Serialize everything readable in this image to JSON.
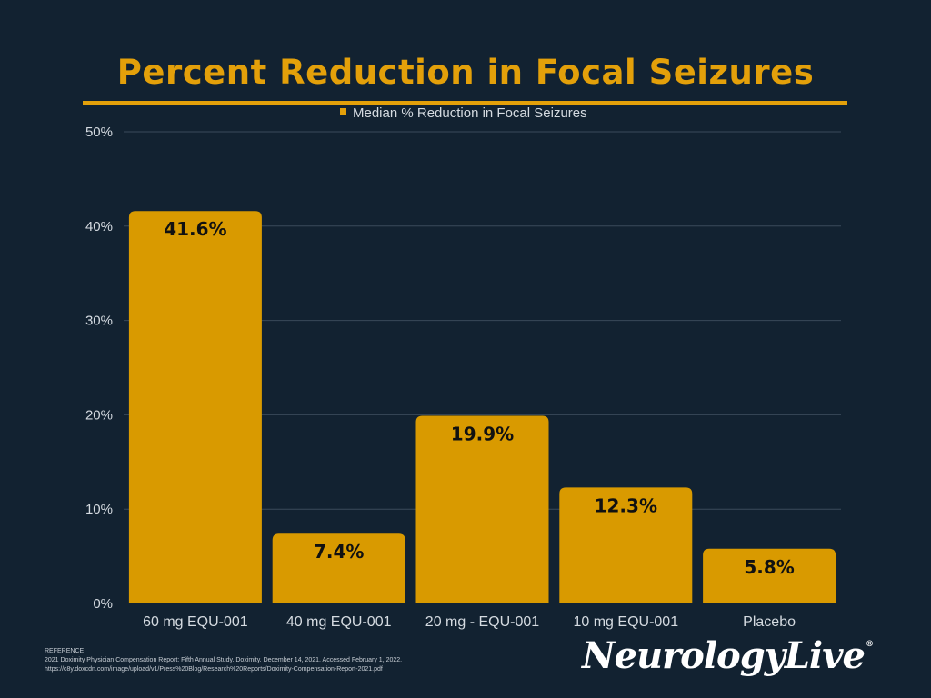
{
  "chart_data": {
    "type": "bar",
    "title": "Percent Reduction in Focal Seizures",
    "legend": "Median % Reduction in Focal Seizures",
    "legend_position": "top",
    "categories": [
      "60 mg EQU-001",
      "40 mg EQU-001",
      "20 mg - EQU-001",
      "10 mg EQU-001",
      "Placebo"
    ],
    "values": [
      41.6,
      7.4,
      19.9,
      12.3,
      5.8
    ],
    "data_labels": [
      "41.6%",
      "7.4%",
      "19.9%",
      "12.3%",
      "5.8%"
    ],
    "ylim": [
      0,
      50
    ],
    "yticks": [
      0,
      10,
      20,
      30,
      40,
      50
    ],
    "ytick_labels": [
      "0%",
      "10%",
      "20%",
      "30%",
      "40%",
      "50%"
    ],
    "xlabel": "",
    "ylabel": "",
    "grid": true
  },
  "reference": {
    "heading": "REFERENCE",
    "line1": "2021 Doximity Physician Compensation Report: Fifth Annual Study. Doximity. December 14, 2021. Accessed February 1, 2022.",
    "line2": "https://c8y.doxcdn.com/image/upload/v1/Press%20Blog/Research%20Reports/Doximity-Compensation-Report-2021.pdf"
  },
  "logo": {
    "text": "NeurologyLive",
    "mark": "®"
  },
  "colors": {
    "background": "#122231",
    "accent": "#E3A00A",
    "bar": "#D99A00",
    "grid": "#3a4a5a",
    "axis_text": "#d5dbe1"
  }
}
